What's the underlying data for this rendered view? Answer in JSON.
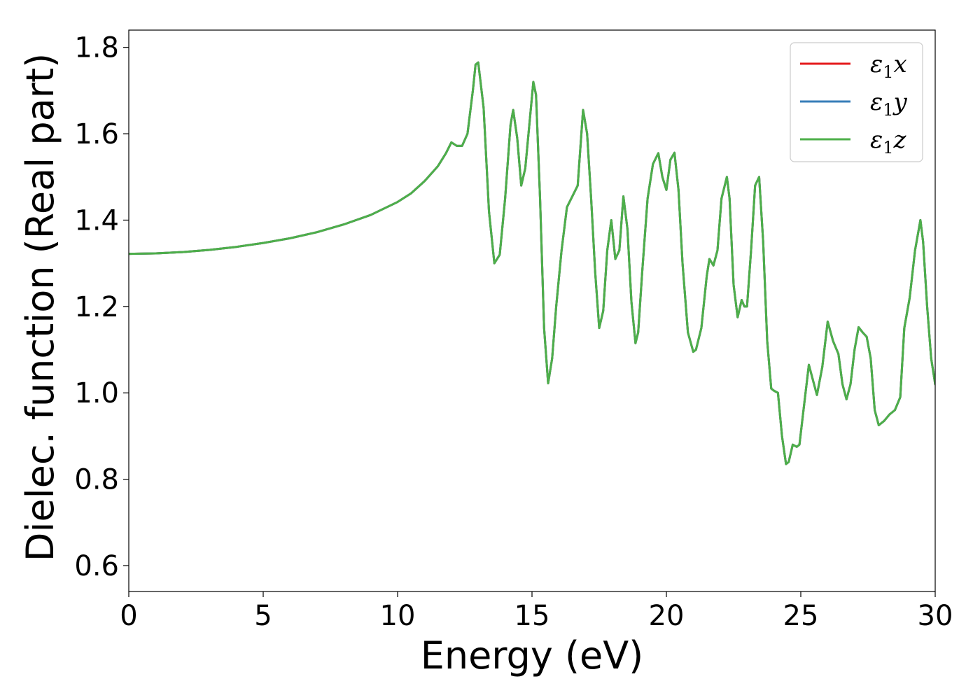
{
  "chart_data": {
    "type": "line",
    "title": "",
    "xlabel": "Energy (eV)",
    "ylabel": "Dielec. function (Real part)",
    "xlim": [
      0,
      30
    ],
    "ylim": [
      0.54,
      1.84
    ],
    "xticks": [
      0,
      5,
      10,
      15,
      20,
      25,
      30
    ],
    "xtick_labels": [
      "0",
      "5",
      "10",
      "15",
      "20",
      "25",
      "30"
    ],
    "yticks": [
      0.6,
      0.8,
      1.0,
      1.2,
      1.4,
      1.6,
      1.8
    ],
    "ytick_labels": [
      "0.6",
      "0.8",
      "1.0",
      "1.2",
      "1.4",
      "1.6",
      "1.8"
    ],
    "grid": false,
    "legend_position": "top-right",
    "series": [
      {
        "name": "ε1x",
        "color": "#e41a1c",
        "x": [
          0,
          1,
          2,
          3,
          4,
          5,
          6,
          7,
          8,
          9,
          10,
          10.5,
          11,
          11.5,
          11.8,
          12.0,
          12.2,
          12.4,
          12.6,
          12.8,
          12.9,
          13.0,
          13.2,
          13.4,
          13.6,
          13.8,
          14.0,
          14.2,
          14.3,
          14.45,
          14.6,
          14.75,
          14.9,
          15.05,
          15.15,
          15.3,
          15.45,
          15.6,
          15.75,
          15.9,
          16.1,
          16.3,
          16.5,
          16.7,
          16.9,
          17.05,
          17.2,
          17.35,
          17.5,
          17.65,
          17.8,
          17.95,
          18.1,
          18.25,
          18.4,
          18.55,
          18.7,
          18.85,
          18.95,
          19.1,
          19.3,
          19.5,
          19.7,
          19.85,
          20.0,
          20.15,
          20.3,
          20.45,
          20.6,
          20.8,
          21.0,
          21.1,
          21.3,
          21.5,
          21.6,
          21.75,
          21.9,
          22.05,
          22.25,
          22.35,
          22.5,
          22.65,
          22.8,
          22.9,
          23.0,
          23.15,
          23.3,
          23.45,
          23.6,
          23.75,
          23.9,
          24.0,
          24.15,
          24.3,
          24.45,
          24.55,
          24.7,
          24.85,
          24.95,
          25.1,
          25.3,
          25.45,
          25.6,
          25.8,
          26.0,
          26.2,
          26.4,
          26.55,
          26.7,
          26.85,
          27.0,
          27.15,
          27.3,
          27.45,
          27.6,
          27.75,
          27.9,
          28.1,
          28.3,
          28.5,
          28.7,
          28.85,
          29.05,
          29.25,
          29.45,
          29.55,
          29.7,
          29.85,
          30.0
        ],
        "y": [
          1.322,
          1.323,
          1.326,
          1.331,
          1.338,
          1.347,
          1.358,
          1.372,
          1.39,
          1.412,
          1.442,
          1.462,
          1.49,
          1.525,
          1.555,
          1.58,
          1.572,
          1.572,
          1.6,
          1.7,
          1.76,
          1.765,
          1.66,
          1.42,
          1.3,
          1.32,
          1.45,
          1.62,
          1.655,
          1.59,
          1.48,
          1.52,
          1.62,
          1.72,
          1.69,
          1.45,
          1.15,
          1.022,
          1.08,
          1.2,
          1.33,
          1.43,
          1.455,
          1.48,
          1.655,
          1.6,
          1.45,
          1.28,
          1.15,
          1.19,
          1.33,
          1.4,
          1.31,
          1.33,
          1.455,
          1.38,
          1.21,
          1.115,
          1.14,
          1.28,
          1.45,
          1.53,
          1.555,
          1.5,
          1.47,
          1.54,
          1.556,
          1.47,
          1.3,
          1.14,
          1.095,
          1.1,
          1.15,
          1.27,
          1.31,
          1.295,
          1.33,
          1.45,
          1.5,
          1.45,
          1.25,
          1.175,
          1.215,
          1.2,
          1.2,
          1.33,
          1.48,
          1.5,
          1.35,
          1.12,
          1.01,
          1.005,
          1.0,
          0.9,
          0.835,
          0.84,
          0.88,
          0.875,
          0.88,
          0.96,
          1.065,
          1.03,
          0.995,
          1.06,
          1.165,
          1.12,
          1.09,
          1.02,
          0.985,
          1.02,
          1.1,
          1.152,
          1.14,
          1.13,
          1.08,
          0.96,
          0.925,
          0.935,
          0.95,
          0.96,
          0.99,
          1.15,
          1.22,
          1.33,
          1.4,
          1.35,
          1.2,
          1.08,
          1.02
        ]
      },
      {
        "name": "ε1y",
        "color": "#377eb8",
        "x": [
          0,
          1,
          2,
          3,
          4,
          5,
          6,
          7,
          8,
          9,
          10,
          10.5,
          11,
          11.5,
          11.8,
          12.0,
          12.2,
          12.4,
          12.6,
          12.8,
          12.9,
          13.0,
          13.2,
          13.4,
          13.6,
          13.8,
          14.0,
          14.2,
          14.3,
          14.45,
          14.6,
          14.75,
          14.9,
          15.05,
          15.15,
          15.3,
          15.45,
          15.6,
          15.75,
          15.9,
          16.1,
          16.3,
          16.5,
          16.7,
          16.9,
          17.05,
          17.2,
          17.35,
          17.5,
          17.65,
          17.8,
          17.95,
          18.1,
          18.25,
          18.4,
          18.55,
          18.7,
          18.85,
          18.95,
          19.1,
          19.3,
          19.5,
          19.7,
          19.85,
          20.0,
          20.15,
          20.3,
          20.45,
          20.6,
          20.8,
          21.0,
          21.1,
          21.3,
          21.5,
          21.6,
          21.75,
          21.9,
          22.05,
          22.25,
          22.35,
          22.5,
          22.65,
          22.8,
          22.9,
          23.0,
          23.15,
          23.3,
          23.45,
          23.6,
          23.75,
          23.9,
          24.0,
          24.15,
          24.3,
          24.45,
          24.55,
          24.7,
          24.85,
          24.95,
          25.1,
          25.3,
          25.45,
          25.6,
          25.8,
          26.0,
          26.2,
          26.4,
          26.55,
          26.7,
          26.85,
          27.0,
          27.15,
          27.3,
          27.45,
          27.6,
          27.75,
          27.9,
          28.1,
          28.3,
          28.5,
          28.7,
          28.85,
          29.05,
          29.25,
          29.45,
          29.55,
          29.7,
          29.85,
          30.0
        ],
        "y": [
          1.322,
          1.323,
          1.326,
          1.331,
          1.338,
          1.347,
          1.358,
          1.372,
          1.39,
          1.412,
          1.442,
          1.462,
          1.49,
          1.525,
          1.555,
          1.58,
          1.572,
          1.572,
          1.6,
          1.7,
          1.76,
          1.765,
          1.66,
          1.42,
          1.3,
          1.32,
          1.45,
          1.62,
          1.655,
          1.59,
          1.48,
          1.52,
          1.62,
          1.72,
          1.69,
          1.45,
          1.15,
          1.022,
          1.08,
          1.2,
          1.33,
          1.43,
          1.455,
          1.48,
          1.655,
          1.6,
          1.45,
          1.28,
          1.15,
          1.19,
          1.33,
          1.4,
          1.31,
          1.33,
          1.455,
          1.38,
          1.21,
          1.115,
          1.14,
          1.28,
          1.45,
          1.53,
          1.555,
          1.5,
          1.47,
          1.54,
          1.556,
          1.47,
          1.3,
          1.14,
          1.095,
          1.1,
          1.15,
          1.27,
          1.31,
          1.295,
          1.33,
          1.45,
          1.5,
          1.45,
          1.25,
          1.175,
          1.215,
          1.2,
          1.2,
          1.33,
          1.48,
          1.5,
          1.35,
          1.12,
          1.01,
          1.005,
          1.0,
          0.9,
          0.835,
          0.84,
          0.88,
          0.875,
          0.88,
          0.96,
          1.065,
          1.03,
          0.995,
          1.06,
          1.165,
          1.12,
          1.09,
          1.02,
          0.985,
          1.02,
          1.1,
          1.152,
          1.14,
          1.13,
          1.08,
          0.96,
          0.925,
          0.935,
          0.95,
          0.96,
          0.99,
          1.15,
          1.22,
          1.33,
          1.4,
          1.35,
          1.2,
          1.08,
          1.02
        ]
      },
      {
        "name": "ε1z",
        "color": "#4daf4a",
        "x": [
          0,
          1,
          2,
          3,
          4,
          5,
          6,
          7,
          8,
          9,
          10,
          10.5,
          11,
          11.5,
          11.8,
          12.0,
          12.2,
          12.4,
          12.6,
          12.8,
          12.9,
          13.0,
          13.2,
          13.4,
          13.6,
          13.8,
          14.0,
          14.2,
          14.3,
          14.45,
          14.6,
          14.75,
          14.9,
          15.05,
          15.15,
          15.3,
          15.45,
          15.6,
          15.75,
          15.9,
          16.1,
          16.3,
          16.5,
          16.7,
          16.9,
          17.05,
          17.2,
          17.35,
          17.5,
          17.65,
          17.8,
          17.95,
          18.1,
          18.25,
          18.4,
          18.55,
          18.7,
          18.85,
          18.95,
          19.1,
          19.3,
          19.5,
          19.7,
          19.85,
          20.0,
          20.15,
          20.3,
          20.45,
          20.6,
          20.8,
          21.0,
          21.1,
          21.3,
          21.5,
          21.6,
          21.75,
          21.9,
          22.05,
          22.25,
          22.35,
          22.5,
          22.65,
          22.8,
          22.9,
          23.0,
          23.15,
          23.3,
          23.45,
          23.6,
          23.75,
          23.9,
          24.0,
          24.15,
          24.3,
          24.45,
          24.55,
          24.7,
          24.85,
          24.95,
          25.1,
          25.3,
          25.45,
          25.6,
          25.8,
          26.0,
          26.2,
          26.4,
          26.55,
          26.7,
          26.85,
          27.0,
          27.15,
          27.3,
          27.45,
          27.6,
          27.75,
          27.9,
          28.1,
          28.3,
          28.5,
          28.7,
          28.85,
          29.05,
          29.25,
          29.45,
          29.55,
          29.7,
          29.85,
          30.0
        ],
        "y": [
          1.322,
          1.323,
          1.326,
          1.331,
          1.338,
          1.347,
          1.358,
          1.372,
          1.39,
          1.412,
          1.442,
          1.462,
          1.49,
          1.525,
          1.555,
          1.58,
          1.572,
          1.572,
          1.6,
          1.7,
          1.76,
          1.765,
          1.66,
          1.42,
          1.3,
          1.32,
          1.45,
          1.62,
          1.655,
          1.59,
          1.48,
          1.52,
          1.62,
          1.72,
          1.69,
          1.45,
          1.15,
          1.022,
          1.08,
          1.2,
          1.33,
          1.43,
          1.455,
          1.48,
          1.655,
          1.6,
          1.45,
          1.28,
          1.15,
          1.19,
          1.33,
          1.4,
          1.31,
          1.33,
          1.455,
          1.38,
          1.21,
          1.115,
          1.14,
          1.28,
          1.45,
          1.53,
          1.555,
          1.5,
          1.47,
          1.54,
          1.556,
          1.47,
          1.3,
          1.14,
          1.095,
          1.1,
          1.15,
          1.27,
          1.31,
          1.295,
          1.33,
          1.45,
          1.5,
          1.45,
          1.25,
          1.175,
          1.215,
          1.2,
          1.2,
          1.33,
          1.48,
          1.5,
          1.35,
          1.12,
          1.01,
          1.005,
          1.0,
          0.9,
          0.835,
          0.84,
          0.88,
          0.875,
          0.88,
          0.96,
          1.065,
          1.03,
          0.995,
          1.06,
          1.165,
          1.12,
          1.09,
          1.02,
          0.985,
          1.02,
          1.1,
          1.152,
          1.14,
          1.13,
          1.08,
          0.96,
          0.925,
          0.935,
          0.95,
          0.96,
          0.99,
          1.15,
          1.22,
          1.33,
          1.4,
          1.35,
          1.2,
          1.08,
          1.02
        ]
      }
    ]
  }
}
